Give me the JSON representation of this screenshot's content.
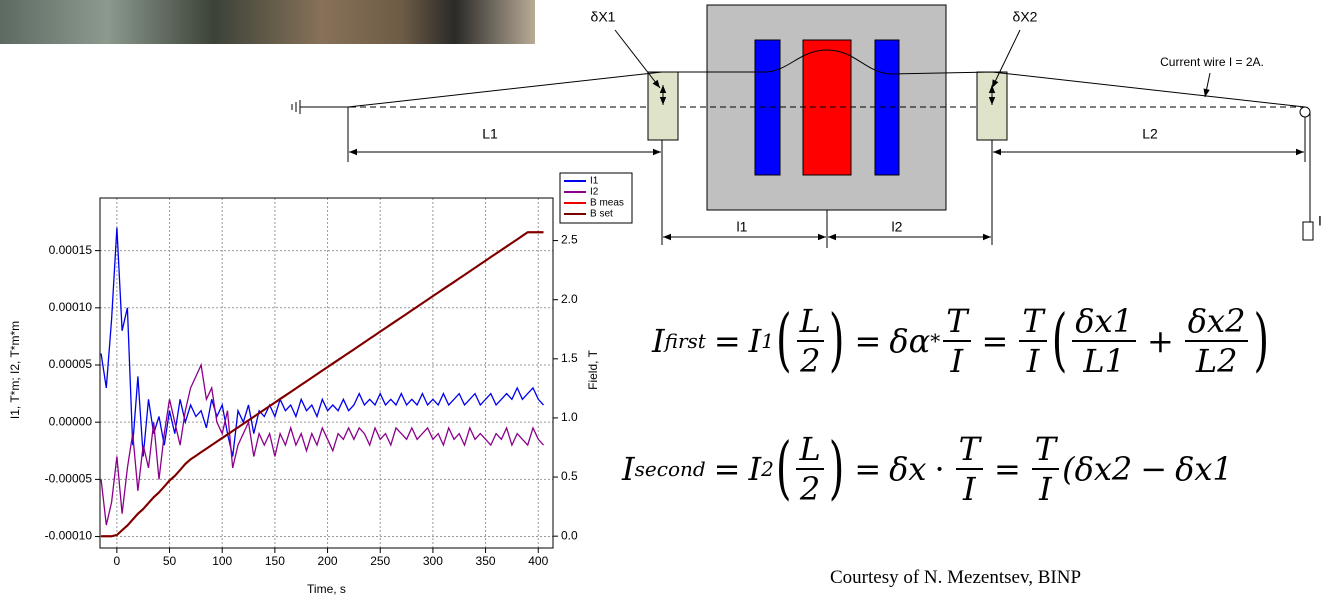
{
  "chart_data": {
    "type": "line",
    "x_label": "Time, s",
    "y_label": "I1, T*m; I2, T*m*m",
    "y2_label": "Field, T",
    "xlim": [
      -16,
      414
    ],
    "xticks": [
      0,
      50,
      100,
      150,
      200,
      250,
      300,
      350,
      400
    ],
    "ylim": [
      -0.00011,
      0.000196
    ],
    "yticks": [
      {
        "value": -0.0001,
        "label": "-0.00010"
      },
      -5e-05,
      {
        "value": 0,
        "label": "0.00000"
      },
      5e-05,
      {
        "value": 0.0001,
        "label": "0.00010"
      },
      0.00015
    ],
    "y2lim": [
      -0.1,
      2.86
    ],
    "y2ticks": [
      {
        "value": 0,
        "label": "0.0"
      },
      0.5,
      {
        "value": 1,
        "label": "1.0"
      },
      1.5,
      {
        "value": 2,
        "label": "2.0"
      },
      2.5
    ],
    "grid": true,
    "legend": "top-right",
    "x": [
      -15,
      -10,
      -5,
      0,
      5,
      10,
      15,
      20,
      25,
      30,
      35,
      40,
      45,
      50,
      55,
      60,
      65,
      70,
      75,
      80,
      85,
      90,
      95,
      100,
      105,
      110,
      115,
      120,
      125,
      130,
      135,
      140,
      145,
      150,
      155,
      160,
      165,
      170,
      175,
      180,
      185,
      190,
      195,
      200,
      205,
      210,
      215,
      220,
      225,
      230,
      235,
      240,
      245,
      250,
      255,
      260,
      265,
      270,
      275,
      280,
      285,
      290,
      295,
      300,
      305,
      310,
      315,
      320,
      325,
      330,
      335,
      340,
      345,
      350,
      355,
      360,
      365,
      370,
      375,
      380,
      385,
      390,
      395,
      400,
      405
    ],
    "series": [
      {
        "name": "I1",
        "color": "#0000ee",
        "values": [
          6e-05,
          3e-05,
          9e-05,
          0.00017,
          8e-05,
          0.0001,
          -2e-05,
          4e-05,
          -3e-05,
          2e-05,
          -1e-05,
          5e-06,
          -2e-05,
          1e-05,
          -1e-05,
          2e-05,
          0,
          1.5e-05,
          5e-06,
          1e-05,
          -5e-06,
          2e-05,
          5e-06,
          1.5e-05,
          -1e-05,
          -3e-05,
          1e-05,
          0,
          1.5e-05,
          -1e-05,
          1e-05,
          5e-06,
          1.5e-05,
          5e-06,
          2e-05,
          1e-05,
          1.5e-05,
          5e-06,
          2e-05,
          1e-05,
          1.5e-05,
          5e-06,
          2e-05,
          1e-05,
          1.5e-05,
          1e-05,
          2e-05,
          1e-05,
          1.5e-05,
          2.5e-05,
          1.5e-05,
          2e-05,
          1.5e-05,
          2.5e-05,
          1.5e-05,
          2e-05,
          1.5e-05,
          2.5e-05,
          1.5e-05,
          2e-05,
          1.5e-05,
          2.5e-05,
          1.5e-05,
          2e-05,
          1.5e-05,
          2.5e-05,
          1.5e-05,
          2e-05,
          2.5e-05,
          1.5e-05,
          2e-05,
          2.5e-05,
          1.5e-05,
          2e-05,
          2.5e-05,
          1.5e-05,
          2e-05,
          2.5e-05,
          2e-05,
          3e-05,
          2e-05,
          2.5e-05,
          3e-05,
          2e-05,
          1.5e-05
        ]
      },
      {
        "name": "I2",
        "color": "#8b008b",
        "values": [
          -5e-05,
          -9e-05,
          -7e-05,
          -3e-05,
          -8e-05,
          -4e-05,
          -1e-05,
          -6e-05,
          -2e-05,
          -4e-05,
          0,
          -5e-05,
          -1e-05,
          2e-05,
          0,
          -2e-05,
          1e-05,
          3e-05,
          4e-05,
          5e-05,
          2e-05,
          3e-05,
          0,
          -1e-05,
          1e-05,
          -4e-05,
          -2e-05,
          -1e-05,
          0,
          -3e-05,
          -1e-05,
          -2e-05,
          -1e-05,
          -3e-05,
          -1e-05,
          -2e-05,
          -5e-06,
          -2e-05,
          -1e-05,
          -2.5e-05,
          -1e-05,
          -2e-05,
          -5e-06,
          -1.5e-05,
          -2.5e-05,
          -1e-05,
          -1.5e-05,
          -5e-06,
          -1.5e-05,
          -5e-06,
          -1e-05,
          -2e-05,
          -5e-06,
          -1.5e-05,
          -1e-05,
          -2e-05,
          -5e-06,
          -1e-05,
          -1.5e-05,
          -5e-06,
          -1.5e-05,
          -1e-05,
          -5e-06,
          -1.5e-05,
          -1e-05,
          -2e-05,
          -5e-06,
          -1.5e-05,
          -1e-05,
          -2e-05,
          -5e-06,
          -1.5e-05,
          -1e-05,
          -1.5e-05,
          -2e-05,
          -1e-05,
          -1.5e-05,
          -5e-06,
          -2e-05,
          -1e-05,
          -1.5e-05,
          -2e-05,
          -5e-06,
          -1.5e-05,
          -2e-05
        ]
      },
      {
        "name": "B meas",
        "color": "#ee0000",
        "axis": "y2",
        "values": [
          0,
          0,
          0,
          0.01,
          0.05,
          0.09,
          0.14,
          0.19,
          0.23,
          0.28,
          0.33,
          0.37,
          0.42,
          0.47,
          0.51,
          0.56,
          0.61,
          0.65,
          0.68,
          0.71,
          0.74,
          0.77,
          0.8,
          0.83,
          0.86,
          0.89,
          0.92,
          0.95,
          0.98,
          1.01,
          1.04,
          1.07,
          1.1,
          1.13,
          1.16,
          1.19,
          1.22,
          1.25,
          1.28,
          1.31,
          1.34,
          1.37,
          1.4,
          1.43,
          1.46,
          1.49,
          1.52,
          1.55,
          1.58,
          1.61,
          1.64,
          1.67,
          1.7,
          1.73,
          1.76,
          1.79,
          1.82,
          1.85,
          1.88,
          1.91,
          1.94,
          1.97,
          2.0,
          2.03,
          2.06,
          2.09,
          2.12,
          2.15,
          2.18,
          2.21,
          2.24,
          2.27,
          2.3,
          2.33,
          2.36,
          2.39,
          2.42,
          2.45,
          2.48,
          2.51,
          2.54,
          2.57,
          2.57,
          2.57,
          2.57
        ]
      },
      {
        "name": "B set",
        "color": "#7a0000",
        "axis": "y2",
        "values": [
          0,
          0,
          0,
          0.01,
          0.05,
          0.09,
          0.14,
          0.19,
          0.23,
          0.28,
          0.33,
          0.37,
          0.42,
          0.47,
          0.51,
          0.56,
          0.61,
          0.65,
          0.68,
          0.71,
          0.74,
          0.77,
          0.8,
          0.83,
          0.86,
          0.89,
          0.92,
          0.95,
          0.98,
          1.01,
          1.04,
          1.07,
          1.1,
          1.13,
          1.16,
          1.19,
          1.22,
          1.25,
          1.28,
          1.31,
          1.34,
          1.37,
          1.4,
          1.43,
          1.46,
          1.49,
          1.52,
          1.55,
          1.58,
          1.61,
          1.64,
          1.67,
          1.7,
          1.73,
          1.76,
          1.79,
          1.82,
          1.85,
          1.88,
          1.91,
          1.94,
          1.97,
          2.0,
          2.03,
          2.06,
          2.09,
          2.12,
          2.15,
          2.18,
          2.21,
          2.24,
          2.27,
          2.3,
          2.33,
          2.36,
          2.39,
          2.42,
          2.45,
          2.48,
          2.51,
          2.54,
          2.57,
          2.57,
          2.57,
          2.57
        ]
      }
    ]
  },
  "diagram": {
    "dx1": "δX1",
    "dx2": "δX2",
    "wire": "Current wire I = 2A.",
    "L1": "L1",
    "L2": "L2",
    "l1": "l1",
    "l2": "l2",
    "weight": "I"
  },
  "equations": [
    {
      "tokens": [
        "I",
        "first",
        "=",
        "I",
        "1",
        "(",
        "L",
        "2",
        ")",
        "=",
        "δα",
        "*",
        "T",
        "I",
        "=",
        "T",
        "I",
        "(",
        "δx1",
        "L1",
        "+",
        "δx2",
        "L2",
        ")"
      ]
    },
    {
      "tokens": [
        "I",
        "second",
        "=",
        "I",
        "2",
        "(",
        "L",
        "2",
        ")",
        "=",
        "δx",
        "·",
        "T",
        "I",
        "=",
        "T",
        "I",
        "(",
        "δx2",
        "−",
        "δx1"
      ]
    }
  ],
  "credit": "Courtesy of N. Mezentsev, BINP"
}
